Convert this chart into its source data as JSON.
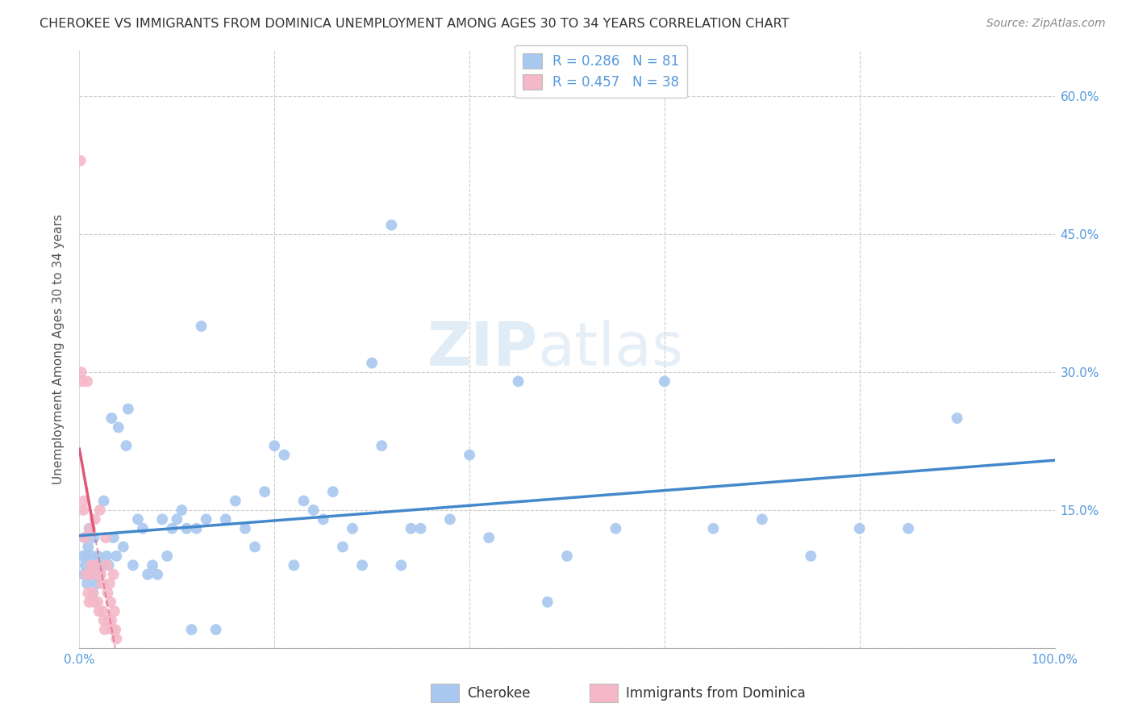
{
  "title": "CHEROKEE VS IMMIGRANTS FROM DOMINICA UNEMPLOYMENT AMONG AGES 30 TO 34 YEARS CORRELATION CHART",
  "source": "Source: ZipAtlas.com",
  "ylabel": "Unemployment Among Ages 30 to 34 years",
  "xlim": [
    0,
    1.0
  ],
  "ylim": [
    0,
    0.65
  ],
  "yticks": [
    0.0,
    0.15,
    0.3,
    0.45,
    0.6
  ],
  "legend_label1": "Cherokee",
  "legend_label2": "Immigrants from Dominica",
  "r1": 0.286,
  "n1": 81,
  "r2": 0.457,
  "n2": 38,
  "color1": "#a8c8f0",
  "color2": "#f4b8c8",
  "trendline1_color": "#4488cc",
  "trendline2_color": "#e05878",
  "watermark_zip": "ZIP",
  "watermark_atlas": "atlas",
  "background_color": "#ffffff",
  "grid_color": "#cccccc",
  "right_axis_color": "#5599dd",
  "cherokee_x": [
    0.003,
    0.004,
    0.005,
    0.006,
    0.007,
    0.008,
    0.009,
    0.01,
    0.011,
    0.012,
    0.013,
    0.014,
    0.015,
    0.016,
    0.017,
    0.018,
    0.019,
    0.02,
    0.022,
    0.025,
    0.028,
    0.03,
    0.033,
    0.035,
    0.038,
    0.04,
    0.045,
    0.048,
    0.05,
    0.055,
    0.06,
    0.065,
    0.07,
    0.075,
    0.08,
    0.085,
    0.09,
    0.095,
    0.1,
    0.105,
    0.11,
    0.115,
    0.12,
    0.125,
    0.13,
    0.14,
    0.15,
    0.16,
    0.17,
    0.18,
    0.19,
    0.2,
    0.21,
    0.22,
    0.23,
    0.24,
    0.25,
    0.26,
    0.27,
    0.28,
    0.29,
    0.3,
    0.31,
    0.32,
    0.33,
    0.34,
    0.35,
    0.38,
    0.4,
    0.42,
    0.45,
    0.48,
    0.5,
    0.55,
    0.6,
    0.65,
    0.7,
    0.75,
    0.8,
    0.85,
    0.9
  ],
  "cherokee_y": [
    0.1,
    0.08,
    0.12,
    0.09,
    0.1,
    0.07,
    0.11,
    0.13,
    0.08,
    0.09,
    0.1,
    0.06,
    0.12,
    0.08,
    0.09,
    0.07,
    0.1,
    0.08,
    0.09,
    0.16,
    0.1,
    0.09,
    0.25,
    0.12,
    0.1,
    0.24,
    0.11,
    0.22,
    0.26,
    0.09,
    0.14,
    0.13,
    0.08,
    0.09,
    0.08,
    0.14,
    0.1,
    0.13,
    0.14,
    0.15,
    0.13,
    0.02,
    0.13,
    0.35,
    0.14,
    0.02,
    0.14,
    0.16,
    0.13,
    0.11,
    0.17,
    0.22,
    0.21,
    0.09,
    0.16,
    0.15,
    0.14,
    0.17,
    0.11,
    0.13,
    0.09,
    0.31,
    0.22,
    0.46,
    0.09,
    0.13,
    0.13,
    0.14,
    0.21,
    0.12,
    0.29,
    0.05,
    0.1,
    0.13,
    0.29,
    0.13,
    0.14,
    0.1,
    0.13,
    0.13,
    0.25
  ],
  "dominica_x": [
    0.001,
    0.002,
    0.003,
    0.004,
    0.005,
    0.006,
    0.007,
    0.008,
    0.009,
    0.01,
    0.011,
    0.012,
    0.013,
    0.014,
    0.015,
    0.016,
    0.017,
    0.018,
    0.019,
    0.02,
    0.021,
    0.022,
    0.023,
    0.024,
    0.025,
    0.026,
    0.027,
    0.028,
    0.029,
    0.03,
    0.031,
    0.032,
    0.033,
    0.034,
    0.035,
    0.036,
    0.037,
    0.038
  ],
  "dominica_y": [
    0.53,
    0.3,
    0.29,
    0.15,
    0.16,
    0.12,
    0.08,
    0.29,
    0.06,
    0.05,
    0.13,
    0.09,
    0.08,
    0.06,
    0.05,
    0.14,
    0.09,
    0.08,
    0.05,
    0.04,
    0.15,
    0.08,
    0.07,
    0.04,
    0.03,
    0.02,
    0.12,
    0.09,
    0.06,
    0.03,
    0.07,
    0.05,
    0.03,
    0.02,
    0.08,
    0.04,
    0.02,
    0.01
  ]
}
